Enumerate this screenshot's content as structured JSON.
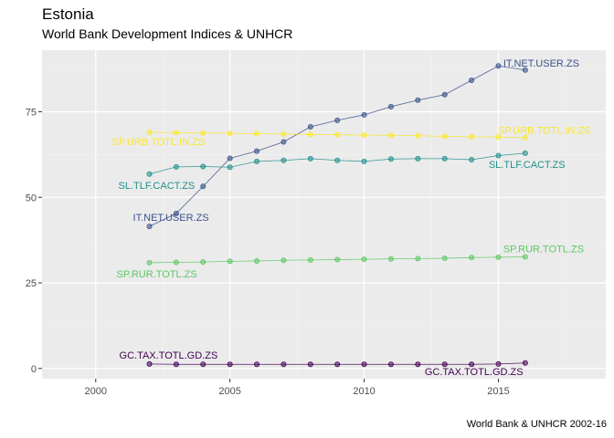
{
  "chart_data": {
    "type": "line",
    "title": "Estonia",
    "subtitle": "World Bank Development Indices & UNHCR",
    "caption": "World Bank & UNHCR 2002-16",
    "xlabel": "",
    "ylabel": "",
    "xlim": [
      1998,
      2019
    ],
    "ylim": [
      -3,
      93
    ],
    "x_ticks": [
      2000,
      2005,
      2010,
      2015
    ],
    "y_ticks": [
      0,
      25,
      50,
      75
    ],
    "grid": true,
    "legend": "none",
    "x": [
      2002,
      2003,
      2004,
      2005,
      2006,
      2007,
      2008,
      2009,
      2010,
      2011,
      2012,
      2013,
      2014,
      2015,
      2016
    ],
    "series": [
      {
        "name": "IT.NET.USER.ZS",
        "color": "#3b528b",
        "values": [
          41.5,
          45.3,
          53.2,
          61.4,
          63.5,
          66.2,
          70.6,
          72.5,
          74.1,
          76.5,
          78.4,
          80.0,
          84.2,
          88.4,
          87.2
        ],
        "label_start": "IT.NET.USER.ZS",
        "label_end": "IT.NET.USER.ZS"
      },
      {
        "name": "SP.URB.TOTL.IN.ZS",
        "color": "#fde725",
        "values": [
          69.0,
          68.9,
          68.8,
          68.7,
          68.6,
          68.5,
          68.4,
          68.3,
          68.2,
          68.1,
          68.0,
          67.8,
          67.7,
          67.6,
          67.5
        ],
        "label_start": "SP.URB.TOTL.IN.ZS",
        "label_end": "SP.URB.TOTL.IN.ZS"
      },
      {
        "name": "SL.TLF.CACT.ZS",
        "color": "#21908c",
        "values": [
          56.8,
          58.9,
          59.0,
          58.8,
          60.5,
          60.8,
          61.3,
          60.8,
          60.5,
          61.2,
          61.3,
          61.3,
          61.0,
          62.2,
          62.9
        ],
        "label_start": "SL.TLF.CACT.ZS",
        "label_end": "SL.TLF.CACT.ZS"
      },
      {
        "name": "SP.RUR.TOTL.ZS",
        "color": "#5dc863",
        "values": [
          30.9,
          31.0,
          31.1,
          31.3,
          31.4,
          31.6,
          31.7,
          31.8,
          31.9,
          32.0,
          32.1,
          32.2,
          32.4,
          32.5,
          32.6
        ],
        "label_start": "SP.RUR.TOTL.ZS",
        "label_end": "SP.RUR.TOTL.ZS"
      },
      {
        "name": "GC.TAX.TOTL.GD.ZS",
        "color": "#440154",
        "values": [
          1.3,
          1.2,
          1.2,
          1.2,
          1.2,
          1.2,
          1.2,
          1.2,
          1.2,
          1.2,
          1.2,
          1.2,
          1.2,
          1.3,
          1.6
        ],
        "label_start": "GC.TAX.TOTL.GD.ZS",
        "label_end": "GC.TAX.TOTL.GD.ZS"
      }
    ]
  }
}
